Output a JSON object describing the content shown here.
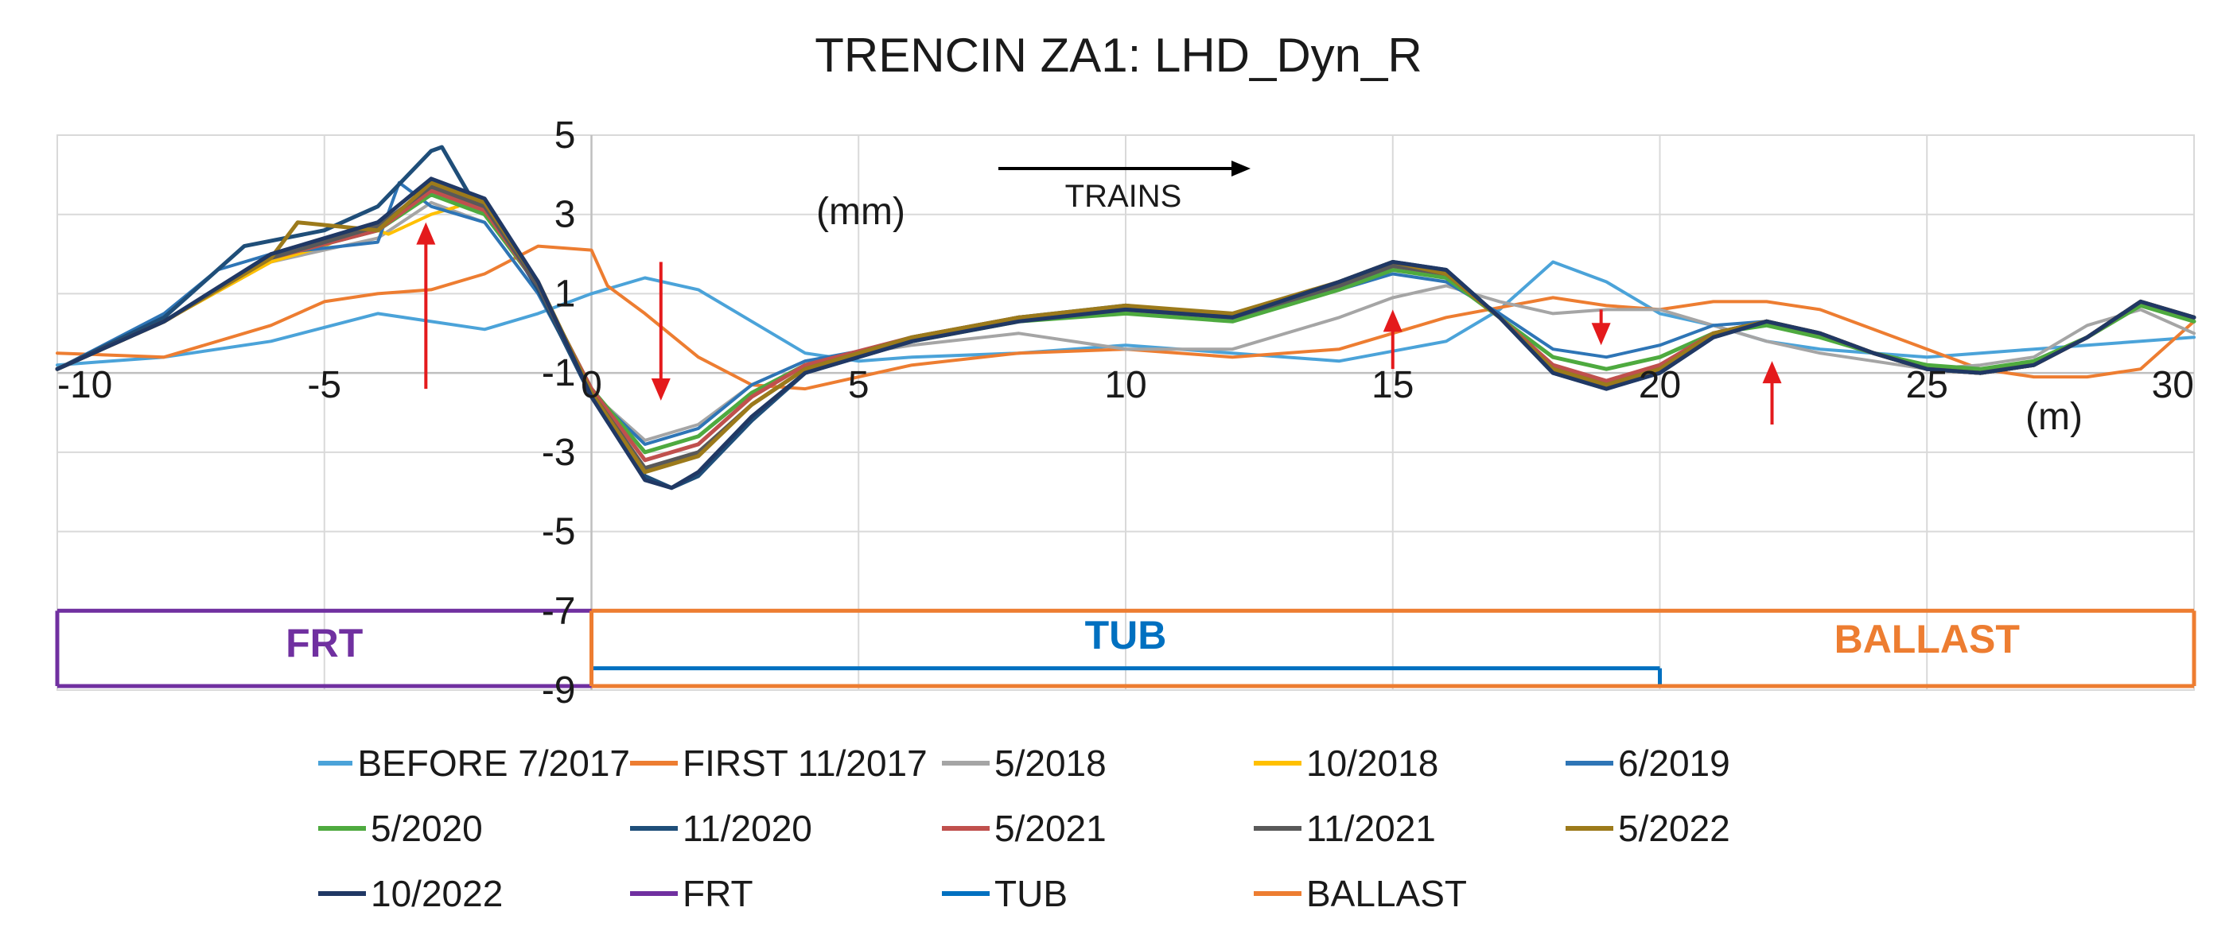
{
  "chart_data": {
    "type": "line",
    "title": "TRENCIN  ZA1: LHD_Dyn_R",
    "xlabel": "(m)",
    "ylabel": "(mm)",
    "annotation": "TRAINS",
    "xlim": [
      -10,
      30
    ],
    "ylim": [
      -9,
      5
    ],
    "x_ticks": [
      -10,
      -5,
      0,
      5,
      10,
      15,
      20,
      25,
      30
    ],
    "y_ticks": [
      5,
      3,
      1,
      -1,
      -3,
      -5,
      -7,
      -9
    ],
    "x_tick_labels": [
      "-10",
      "-5",
      "0",
      "5",
      "10",
      "15",
      "20",
      "25",
      "30"
    ],
    "y_tick_labels": [
      "5",
      "3",
      "1",
      "-1",
      "-3",
      "-5",
      "-7",
      "-9"
    ],
    "grid": true,
    "legend_position": "bottom",
    "zones": [
      {
        "name": "FRT",
        "color": "#7030A0",
        "x": [
          -10,
          0
        ],
        "y": [
          -8.9,
          -7.0
        ]
      },
      {
        "name": "TUB",
        "color": "#0070C0",
        "x": [
          0,
          20
        ],
        "y": [
          -8.9,
          -8.45
        ]
      },
      {
        "name": "BALLAST",
        "color": "#ED7D31",
        "x": [
          0,
          30
        ],
        "y": [
          -8.9,
          -7.0
        ]
      }
    ],
    "arrows": [
      {
        "x": -3.1,
        "y_from": -1.4,
        "y_to": 2.8,
        "direction": "up"
      },
      {
        "x": 1.3,
        "y_from": 1.8,
        "y_to": -1.7,
        "direction": "down"
      },
      {
        "x": 15.0,
        "y_from": -0.9,
        "y_to": 0.6,
        "direction": "up"
      },
      {
        "x": 18.9,
        "y_from": 0.6,
        "y_to": -0.3,
        "direction": "down"
      },
      {
        "x": 22.1,
        "y_from": -2.3,
        "y_to": -0.7,
        "direction": "up"
      }
    ],
    "series": [
      {
        "name": "BEFORE 7/2017",
        "color": "#4BA3D9",
        "x": [
          -10,
          -8,
          -6,
          -4,
          -2,
          -1,
          0,
          1,
          2,
          3,
          4,
          5,
          6,
          8,
          10,
          12,
          14,
          16,
          17,
          18,
          19,
          20,
          21,
          22,
          23,
          24,
          25,
          26,
          27,
          28,
          29,
          30
        ],
        "y": [
          -0.8,
          -0.6,
          -0.2,
          0.5,
          0.1,
          0.5,
          1.0,
          1.4,
          1.1,
          0.3,
          -0.5,
          -0.7,
          -0.6,
          -0.5,
          -0.3,
          -0.5,
          -0.7,
          -0.2,
          0.6,
          1.8,
          1.3,
          0.5,
          0.2,
          -0.2,
          -0.4,
          -0.5,
          -0.6,
          -0.5,
          -0.4,
          -0.3,
          -0.2,
          -0.1
        ]
      },
      {
        "name": "FIRST 11/2017",
        "color": "#ED7D31",
        "x": [
          -10,
          -8,
          -6,
          -5,
          -4,
          -3,
          -2,
          -1,
          0,
          0.3,
          1,
          2,
          3,
          4,
          6,
          8,
          10,
          12,
          14,
          16,
          18,
          19,
          20,
          21,
          22,
          23,
          24,
          25,
          26,
          27,
          28,
          29,
          30
        ],
        "y": [
          -0.5,
          -0.6,
          0.2,
          0.8,
          1.0,
          1.1,
          1.5,
          2.2,
          2.1,
          1.2,
          0.5,
          -0.6,
          -1.3,
          -1.4,
          -0.8,
          -0.5,
          -0.4,
          -0.6,
          -0.4,
          0.4,
          0.9,
          0.7,
          0.6,
          0.8,
          0.8,
          0.6,
          0.1,
          -0.4,
          -0.9,
          -1.1,
          -1.1,
          -0.9,
          0.3
        ]
      },
      {
        "name": "5/2018",
        "color": "#A5A5A5",
        "x": [
          -10,
          -8,
          -6,
          -4,
          -3,
          -2,
          -1,
          0,
          1,
          2,
          3,
          4,
          6,
          8,
          10,
          12,
          14,
          15,
          16,
          17,
          18,
          19,
          20,
          21,
          22,
          23,
          24,
          25,
          26,
          27,
          28,
          29,
          30
        ],
        "y": [
          -0.9,
          0.3,
          1.8,
          2.4,
          3.3,
          2.8,
          1.0,
          -1.5,
          -2.7,
          -2.3,
          -1.3,
          -0.7,
          -0.3,
          0.0,
          -0.4,
          -0.4,
          0.4,
          0.9,
          1.2,
          0.8,
          0.5,
          0.6,
          0.6,
          0.2,
          -0.2,
          -0.5,
          -0.7,
          -0.9,
          -0.8,
          -0.6,
          0.2,
          0.6,
          0.0
        ]
      },
      {
        "name": "10/2018",
        "color": "#FFC000",
        "x": [
          -10,
          -8,
          -6,
          -5,
          -4.2,
          -3.8,
          -3,
          -2.5
        ],
        "y": [
          -0.9,
          0.3,
          1.8,
          2.2,
          2.7,
          2.5,
          3.0,
          3.2
        ]
      },
      {
        "name": "6/2019",
        "color": "#2E75B6",
        "x": [
          -10,
          -8,
          -7,
          -6,
          -4,
          -3.6,
          -3,
          -2,
          -1,
          0,
          1,
          2,
          3,
          4,
          6,
          8,
          10,
          12,
          14,
          15,
          16,
          17,
          18,
          19,
          20,
          21,
          22,
          23,
          24,
          25,
          26,
          27,
          28,
          29,
          30
        ],
        "y": [
          -0.9,
          0.5,
          1.6,
          2.0,
          2.3,
          3.8,
          3.2,
          2.8,
          1.0,
          -1.5,
          -2.8,
          -2.4,
          -1.3,
          -0.7,
          -0.2,
          0.4,
          0.6,
          0.4,
          1.1,
          1.5,
          1.3,
          0.5,
          -0.4,
          -0.6,
          -0.3,
          0.2,
          0.3,
          -0.1,
          -0.5,
          -0.8,
          -0.9,
          -0.7,
          -0.1,
          0.7,
          0.3
        ]
      },
      {
        "name": "5/2020",
        "color": "#4EAA3F",
        "x": [
          -10,
          -8,
          -6,
          -4,
          -3,
          -2,
          -1,
          0,
          1,
          2,
          3,
          4,
          6,
          8,
          10,
          12,
          14,
          15,
          16,
          17,
          18,
          19,
          20,
          21,
          22,
          23,
          24,
          25,
          26,
          27,
          28,
          29,
          30
        ],
        "y": [
          -0.9,
          0.3,
          1.9,
          2.6,
          3.5,
          3.0,
          1.2,
          -1.4,
          -3.0,
          -2.6,
          -1.5,
          -0.8,
          -0.2,
          0.3,
          0.5,
          0.3,
          1.1,
          1.6,
          1.4,
          0.4,
          -0.6,
          -0.9,
          -0.6,
          0.0,
          0.2,
          -0.1,
          -0.5,
          -0.8,
          -0.9,
          -0.7,
          -0.1,
          0.7,
          0.3
        ]
      },
      {
        "name": "11/2020",
        "color": "#1F4E79",
        "x": [
          -10,
          -8,
          -6.5,
          -5,
          -4,
          -3,
          -2.8,
          -2.2,
          -1.8,
          -1,
          0,
          1,
          1.5,
          2,
          3,
          4,
          6,
          8,
          10,
          12,
          14,
          15,
          16,
          17,
          18,
          19,
          20,
          21,
          22,
          23,
          24,
          25,
          26,
          27,
          28,
          29,
          30
        ],
        "y": [
          -0.9,
          0.4,
          2.2,
          2.6,
          3.2,
          4.6,
          4.7,
          3.3,
          2.9,
          1.1,
          -1.6,
          -3.6,
          -3.9,
          -3.6,
          -2.2,
          -1.0,
          -0.2,
          0.4,
          0.7,
          0.4,
          1.3,
          1.8,
          1.6,
          0.4,
          -1.0,
          -1.4,
          -1.0,
          -0.1,
          0.3,
          0.0,
          -0.5,
          -0.9,
          -1.0,
          -0.8,
          -0.1,
          0.8,
          0.4
        ]
      },
      {
        "name": "5/2021",
        "color": "#C0504D",
        "x": [
          -10,
          -8,
          -6,
          -4,
          -3,
          -2,
          -1,
          0,
          1,
          2,
          3,
          4,
          6,
          8,
          10,
          12,
          14,
          15,
          16,
          17,
          18,
          19,
          20,
          21,
          22,
          23,
          24,
          25,
          26,
          27,
          28,
          29,
          30
        ],
        "y": [
          -0.9,
          0.3,
          1.9,
          2.6,
          3.6,
          3.1,
          1.2,
          -1.4,
          -3.2,
          -2.8,
          -1.6,
          -0.8,
          -0.1,
          0.4,
          0.6,
          0.4,
          1.3,
          1.7,
          1.5,
          0.4,
          -0.8,
          -1.2,
          -0.8,
          0.0,
          0.3,
          0.0,
          -0.5,
          -0.9,
          -1.0,
          -0.8,
          -0.1,
          0.8,
          0.4
        ]
      },
      {
        "name": "11/2021",
        "color": "#595959",
        "x": [
          -10,
          -8,
          -6,
          -4,
          -3,
          -2,
          -1,
          0,
          1,
          2,
          3,
          4,
          6,
          8,
          10,
          12,
          14,
          15,
          16,
          17,
          18,
          19,
          20,
          21,
          22,
          23,
          24,
          25,
          26,
          27,
          28,
          29,
          30
        ],
        "y": [
          -0.9,
          0.3,
          1.9,
          2.7,
          3.7,
          3.2,
          1.2,
          -1.5,
          -3.4,
          -3.0,
          -1.8,
          -0.9,
          -0.1,
          0.4,
          0.6,
          0.4,
          1.2,
          1.7,
          1.5,
          0.4,
          -0.9,
          -1.3,
          -0.9,
          0.0,
          0.3,
          0.0,
          -0.5,
          -0.9,
          -1.0,
          -0.8,
          -0.1,
          0.8,
          0.4
        ]
      },
      {
        "name": "5/2022",
        "color": "#9C7A1B",
        "x": [
          -10,
          -8,
          -6,
          -5.5,
          -4,
          -3,
          -2,
          -1,
          0,
          1,
          2,
          3,
          4,
          6,
          8,
          10,
          12,
          14,
          15,
          16,
          17,
          18,
          19,
          20,
          21,
          22,
          23,
          24,
          25,
          26,
          27,
          28,
          29,
          30
        ],
        "y": [
          -0.9,
          0.3,
          1.9,
          2.8,
          2.6,
          3.8,
          3.3,
          1.3,
          -1.5,
          -3.5,
          -3.1,
          -1.8,
          -0.9,
          -0.1,
          0.4,
          0.7,
          0.5,
          1.3,
          1.8,
          1.5,
          0.4,
          -0.9,
          -1.3,
          -0.9,
          0.0,
          0.3,
          0.0,
          -0.5,
          -0.9,
          -1.0,
          -0.8,
          -0.1,
          0.8,
          0.4
        ]
      },
      {
        "name": "10/2022",
        "color": "#203864",
        "x": [
          -10,
          -8,
          -6,
          -4,
          -3,
          -2,
          -1,
          0,
          1,
          1.5,
          2,
          3,
          4,
          6,
          8,
          10,
          12,
          14,
          15,
          16,
          17,
          18,
          19,
          20,
          21,
          22,
          23,
          24,
          25,
          26,
          27,
          28,
          29,
          30
        ],
        "y": [
          -0.9,
          0.3,
          2.0,
          2.8,
          3.9,
          3.4,
          1.3,
          -1.6,
          -3.7,
          -3.9,
          -3.5,
          -2.1,
          -1.0,
          -0.2,
          0.3,
          0.6,
          0.4,
          1.3,
          1.8,
          1.6,
          0.4,
          -1.0,
          -1.4,
          -1.0,
          -0.1,
          0.3,
          0.0,
          -0.5,
          -0.9,
          -1.0,
          -0.8,
          -0.1,
          0.8,
          0.4
        ]
      }
    ],
    "legend": [
      {
        "label": "BEFORE 7/2017",
        "color": "#4BA3D9"
      },
      {
        "label": "FIRST 11/2017",
        "color": "#ED7D31"
      },
      {
        "label": "5/2018",
        "color": "#A5A5A5"
      },
      {
        "label": "10/2018",
        "color": "#FFC000"
      },
      {
        "label": "6/2019",
        "color": "#2E75B6"
      },
      {
        "label": "5/2020",
        "color": "#4EAA3F"
      },
      {
        "label": "11/2020",
        "color": "#1F4E79"
      },
      {
        "label": "5/2021",
        "color": "#C0504D"
      },
      {
        "label": "11/2021",
        "color": "#595959"
      },
      {
        "label": "5/2022",
        "color": "#9C7A1B"
      },
      {
        "label": "10/2022",
        "color": "#203864"
      },
      {
        "label": "FRT",
        "color": "#7030A0"
      },
      {
        "label": "TUB",
        "color": "#0070C0"
      },
      {
        "label": "BALLAST",
        "color": "#ED7D31"
      }
    ]
  }
}
